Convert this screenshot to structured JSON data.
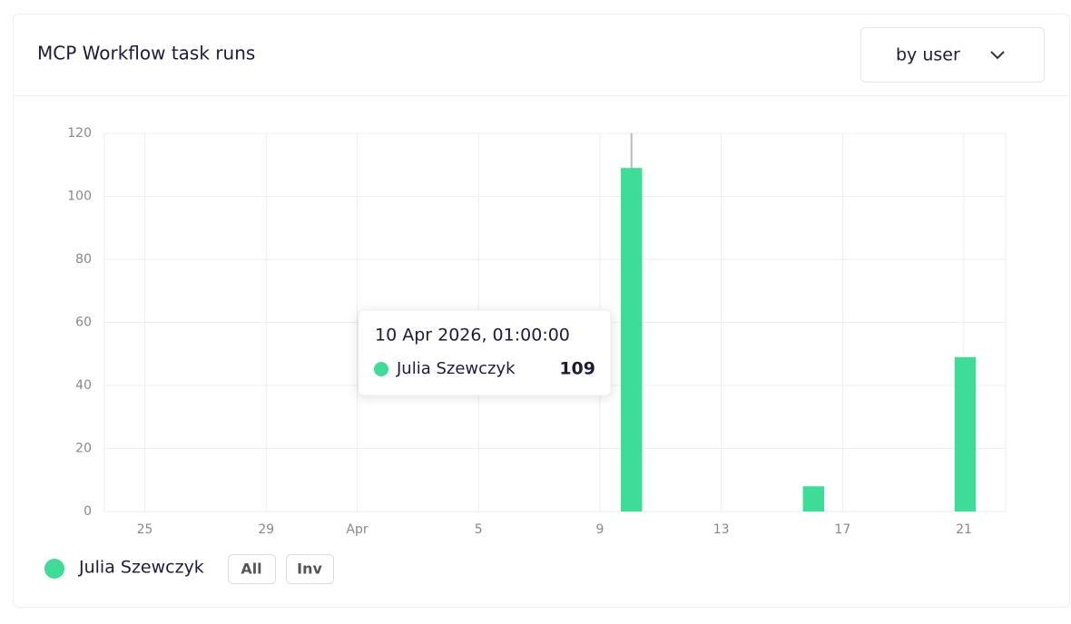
{
  "header": {
    "title": "MCP Workflow task runs",
    "dropdown": "by user"
  },
  "chart_data": {
    "type": "bar",
    "x": [
      "2026-04-10T01:00:00",
      "2026-04-16T01:00:00",
      "2026-04-21T01:00:00"
    ],
    "series": [
      {
        "name": "Julia Szewczyk",
        "color": "#3ddc97",
        "values": [
          109,
          8,
          49
        ]
      }
    ],
    "xlim": [
      "2026-03-23T16:00:00",
      "2026-04-22T09:00:00"
    ],
    "xticks": [
      {
        "value": "2026-03-25T00:00:00",
        "label": "25"
      },
      {
        "value": "2026-03-29T00:00:00",
        "label": "29"
      },
      {
        "value": "2026-04-01T00:00:00",
        "label": "Apr"
      },
      {
        "value": "2026-04-05T00:00:00",
        "label": "5"
      },
      {
        "value": "2026-04-09T00:00:00",
        "label": "9"
      },
      {
        "value": "2026-04-13T00:00:00",
        "label": "13"
      },
      {
        "value": "2026-04-17T00:00:00",
        "label": "17"
      },
      {
        "value": "2026-04-21T00:00:00",
        "label": "21"
      }
    ],
    "ylim": [
      0,
      120
    ],
    "yticks": [
      0,
      20,
      40,
      60,
      80,
      100,
      120
    ],
    "grid": true,
    "tooltip": {
      "title": "10 Apr 2026, 01:00:00"
    }
  },
  "legend_buttons": [
    "All",
    "Inv"
  ]
}
